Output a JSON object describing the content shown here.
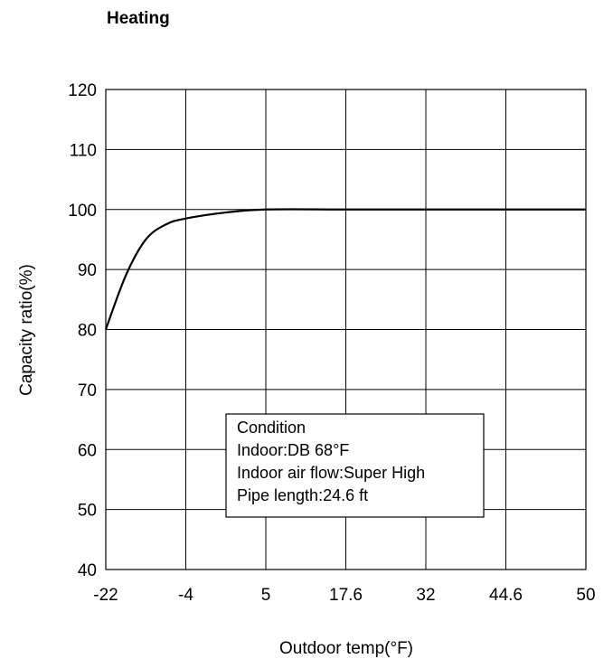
{
  "chart_data": {
    "type": "line",
    "title": "Heating",
    "xlabel": "Outdoor temp(°F)",
    "ylabel": "Capacity ratio(%)",
    "x_ticks": [
      "-22",
      "-4",
      "5",
      "17.6",
      "32",
      "44.6",
      "50"
    ],
    "y_ticks": [
      40,
      50,
      60,
      70,
      80,
      90,
      100,
      110,
      120
    ],
    "ylim": [
      40,
      120
    ],
    "grid": true,
    "series": [
      {
        "points": [
          {
            "x": "-22",
            "y": 80
          },
          {
            "x": "-17.5",
            "y": 89
          },
          {
            "x": "-13",
            "y": 95
          },
          {
            "x": "-8.5",
            "y": 97.5
          },
          {
            "x": "-4",
            "y": 98.5
          },
          {
            "x": "0.5",
            "y": 99.5
          },
          {
            "x": "5",
            "y": 100
          },
          {
            "x": "17.6",
            "y": 100
          },
          {
            "x": "32",
            "y": 100
          },
          {
            "x": "44.6",
            "y": 100
          },
          {
            "x": "50",
            "y": 100
          }
        ],
        "color": "#000000"
      }
    ],
    "annotation": {
      "lines": [
        "Condition",
        "Indoor:DB 68°F",
        "Indoor air flow:Super High",
        "Pipe length:24.6 ft"
      ]
    }
  }
}
